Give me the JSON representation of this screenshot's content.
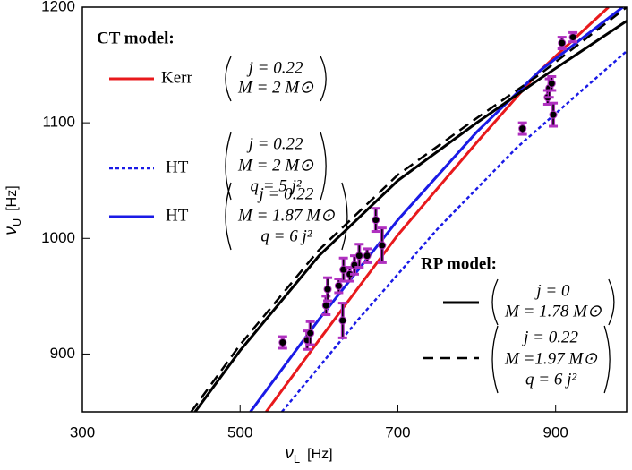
{
  "chart_data": {
    "type": "line",
    "xlabel": {
      "symbol": "ν",
      "sub": "L",
      "unit": "[Hz]"
    },
    "ylabel": {
      "symbol": "ν",
      "sub": "U",
      "unit": "[Hz]"
    },
    "xlim": [
      300,
      990
    ],
    "ylim": [
      850,
      1200
    ],
    "xticks": [
      300,
      500,
      700,
      900
    ],
    "yticks": [
      900,
      1000,
      1100,
      1200
    ],
    "legend_groups": [
      "CT model:",
      "RP model:"
    ],
    "series": [
      {
        "name": "Kerr",
        "color": "#e8191c",
        "style": "solid",
        "params": [
          "j = 0.22",
          "M = 2 M⊙"
        ],
        "x": [
          533,
          600,
          700,
          800,
          880,
          967
        ],
        "values": [
          850,
          912,
          1003,
          1083,
          1145,
          1200
        ]
      },
      {
        "name": "HT",
        "color": "#1a1ae6",
        "style": "dotted",
        "params": [
          "j = 0.22",
          "M = 2 M⊙",
          "q = 5 j²"
        ],
        "x": [
          553,
          650,
          750,
          850,
          990
        ],
        "values": [
          850,
          930,
          1008,
          1078,
          1162
        ]
      },
      {
        "name": "HT",
        "color": "#1a1ae6",
        "style": "solid",
        "params": [
          "j = 0.22",
          "M = 1.87 M⊙",
          "q = 6 j²"
        ],
        "x": [
          513,
          600,
          700,
          800,
          880,
          985
        ],
        "values": [
          850,
          930,
          1016,
          1092,
          1145,
          1200
        ]
      },
      {
        "color": "#000000",
        "style": "solid",
        "params": [
          "j = 0",
          "M = 1.78 M⊙"
        ],
        "x": [
          443,
          500,
          600,
          700,
          800,
          880,
          990
        ],
        "values": [
          850,
          903,
          985,
          1050,
          1100,
          1138,
          1188
        ]
      },
      {
        "color": "#000000",
        "style": "dashed",
        "params": [
          "j = 0.22",
          "M =1.97 M⊙",
          "q = 6 j²"
        ],
        "x": [
          438,
          500,
          600,
          700,
          800,
          880,
          990
        ],
        "values": [
          850,
          908,
          990,
          1055,
          1104,
          1142,
          1200
        ]
      }
    ],
    "points": {
      "color": "#b030c0",
      "x": [
        554,
        585,
        589,
        609,
        611,
        625,
        630,
        631,
        639,
        645,
        651,
        661,
        672,
        680,
        858,
        890,
        892,
        895,
        897,
        908,
        922
      ],
      "y": [
        910,
        912,
        918,
        942,
        956,
        959,
        929,
        973,
        969,
        977,
        985,
        985,
        1016,
        994,
        1095,
        1122,
        1130,
        1134,
        1107,
        1169,
        1174
      ],
      "yerr": [
        5,
        8,
        10,
        8,
        10,
        6,
        15,
        10,
        6,
        8,
        10,
        6,
        10,
        15,
        5,
        6,
        8,
        6,
        10,
        5,
        4
      ]
    }
  }
}
